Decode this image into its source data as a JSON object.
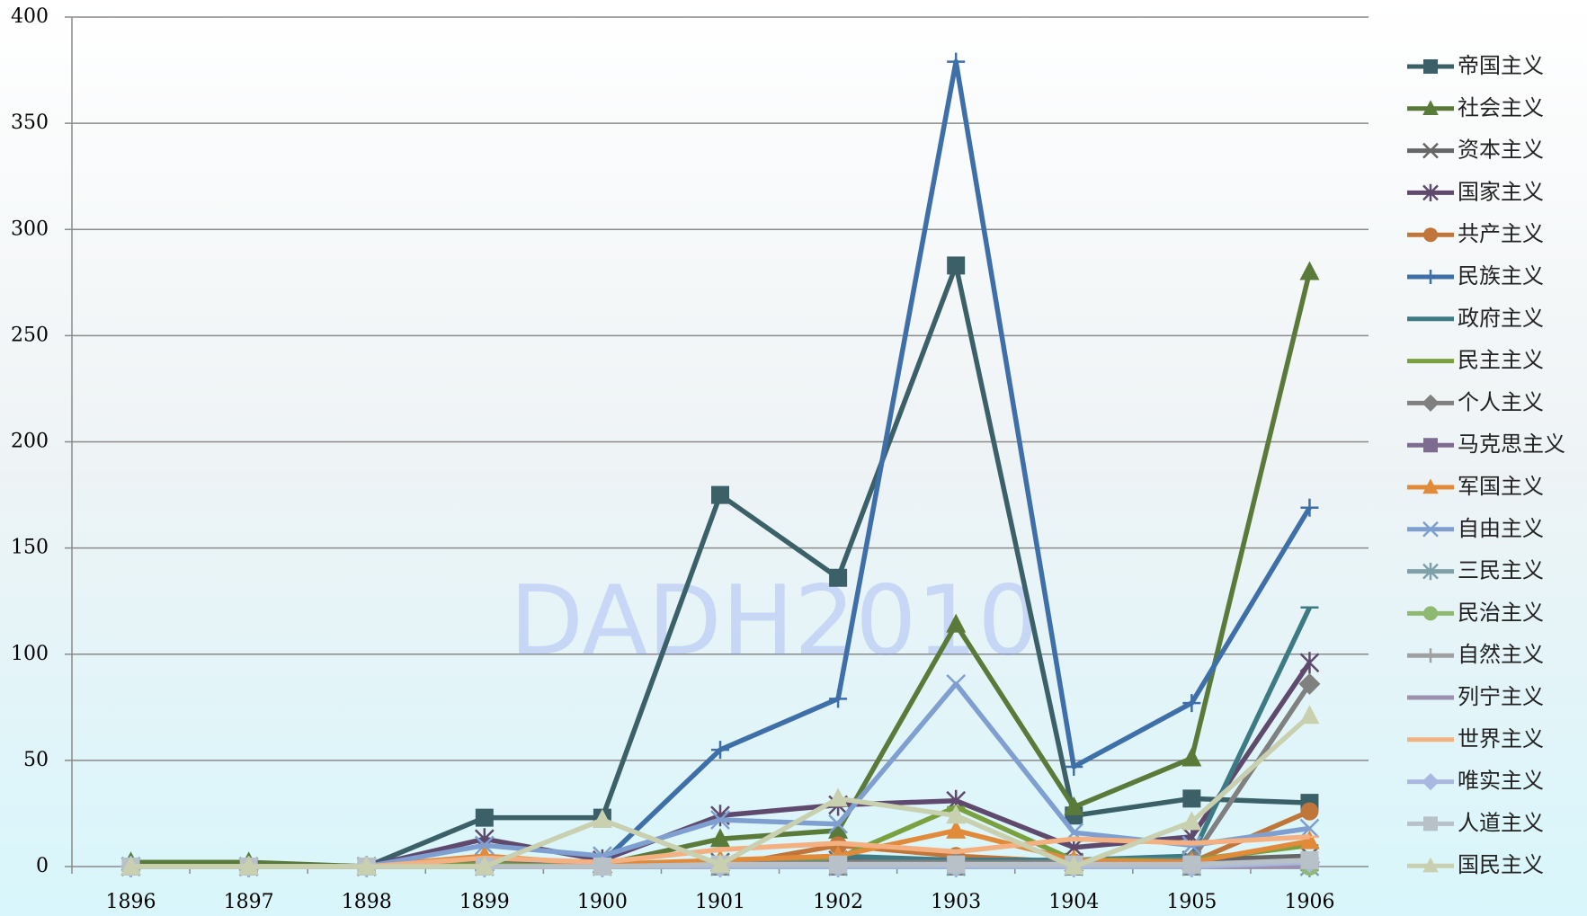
{
  "chart_data": {
    "type": "line",
    "annotations": [
      "DADH2010"
    ],
    "categories": [
      "1896",
      "1897",
      "1898",
      "1899",
      "1900",
      "1901",
      "1902",
      "1903",
      "1904",
      "1905",
      "1906"
    ],
    "ylim": [
      0,
      400
    ],
    "yticks": [
      0,
      50,
      100,
      150,
      200,
      250,
      300,
      350,
      400
    ],
    "grid": true,
    "legend": "right",
    "series": [
      {
        "name": "帝国主义",
        "color": "#3b6068",
        "marker": "square",
        "values": [
          0,
          0,
          0,
          23,
          23,
          175,
          136,
          283,
          24,
          32,
          30
        ]
      },
      {
        "name": "社会主义",
        "color": "#5a7a3a",
        "marker": "triangle",
        "values": [
          2,
          2,
          0,
          2,
          1,
          13,
          17,
          114,
          28,
          51,
          280
        ]
      },
      {
        "name": "资本主义",
        "color": "#666666",
        "marker": "x",
        "values": [
          0,
          0,
          0,
          2,
          1,
          2,
          3,
          3,
          2,
          3,
          5
        ]
      },
      {
        "name": "国家主义",
        "color": "#5f4a6e",
        "marker": "asterisk",
        "values": [
          0,
          0,
          0,
          13,
          3,
          24,
          29,
          31,
          9,
          14,
          96
        ]
      },
      {
        "name": "共产主义",
        "color": "#c0763a",
        "marker": "circle",
        "values": [
          0,
          0,
          0,
          0,
          0,
          0,
          10,
          5,
          2,
          2,
          26
        ]
      },
      {
        "name": "民族主义",
        "color": "#3f6fa8",
        "marker": "plus",
        "values": [
          0,
          0,
          0,
          0,
          2,
          55,
          79,
          379,
          47,
          77,
          169
        ]
      },
      {
        "name": "政府主义",
        "color": "#3d7a84",
        "marker": "dash",
        "values": [
          0,
          0,
          0,
          0,
          0,
          2,
          5,
          3,
          3,
          5,
          122
        ]
      },
      {
        "name": "民主主义",
        "color": "#7aa040",
        "marker": "dash",
        "values": [
          0,
          0,
          0,
          1,
          0,
          3,
          4,
          28,
          3,
          3,
          10
        ]
      },
      {
        "name": "个人主义",
        "color": "#808080",
        "marker": "diamond",
        "values": [
          0,
          0,
          0,
          0,
          0,
          1,
          2,
          2,
          2,
          3,
          86
        ]
      },
      {
        "name": "马克思主义",
        "color": "#7e6b8f",
        "marker": "square",
        "values": [
          0,
          0,
          0,
          0,
          0,
          0,
          0,
          0,
          0,
          0,
          2
        ]
      },
      {
        "name": "军国主义",
        "color": "#e08a3a",
        "marker": "triangle",
        "values": [
          0,
          0,
          0,
          5,
          1,
          3,
          5,
          17,
          3,
          2,
          12
        ]
      },
      {
        "name": "自由主义",
        "color": "#7f9fd0",
        "marker": "x",
        "values": [
          0,
          0,
          0,
          10,
          5,
          22,
          20,
          86,
          16,
          10,
          18
        ]
      },
      {
        "name": "三民主义",
        "color": "#7ea0a8",
        "marker": "asterisk",
        "values": [
          0,
          0,
          0,
          0,
          0,
          0,
          0,
          0,
          0,
          0,
          0
        ]
      },
      {
        "name": "民治主义",
        "color": "#8fb870",
        "marker": "circle",
        "values": [
          0,
          0,
          0,
          0,
          0,
          0,
          0,
          0,
          0,
          0,
          0
        ]
      },
      {
        "name": "自然主义",
        "color": "#a0a0a0",
        "marker": "plus",
        "values": [
          0,
          0,
          0,
          0,
          0,
          1,
          1,
          1,
          1,
          1,
          2
        ]
      },
      {
        "name": "列宁主义",
        "color": "#9f90b0",
        "marker": "dash",
        "values": [
          0,
          0,
          0,
          0,
          0,
          0,
          0,
          0,
          0,
          0,
          0
        ]
      },
      {
        "name": "世界主义",
        "color": "#f4b080",
        "marker": "dash",
        "values": [
          0,
          0,
          0,
          4,
          2,
          8,
          11,
          7,
          13,
          11,
          14
        ]
      },
      {
        "name": "唯实主义",
        "color": "#a8b8e0",
        "marker": "diamond",
        "values": [
          0,
          0,
          0,
          0,
          0,
          0,
          0,
          0,
          0,
          0,
          2
        ]
      },
      {
        "name": "人道主义",
        "color": "#b8c0c8",
        "marker": "square",
        "values": [
          0,
          0,
          0,
          0,
          0,
          1,
          1,
          1,
          1,
          1,
          3
        ]
      },
      {
        "name": "国民主义",
        "color": "#c8d0b0",
        "marker": "triangle",
        "values": [
          0,
          0,
          0,
          0,
          22,
          1,
          32,
          24,
          0,
          21,
          71
        ]
      }
    ]
  }
}
